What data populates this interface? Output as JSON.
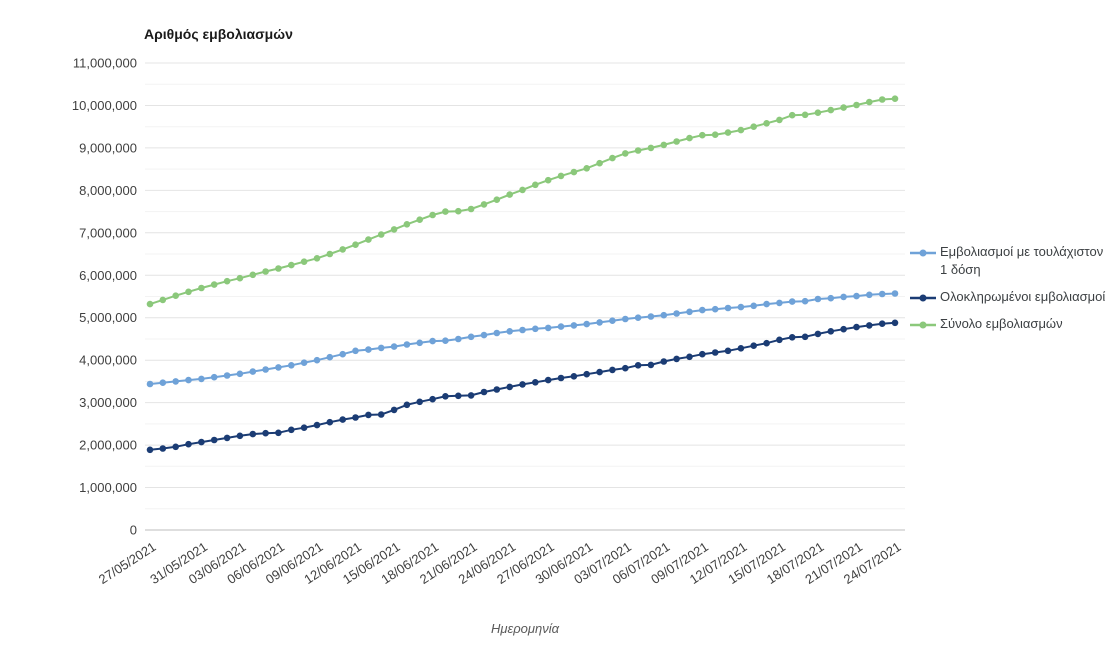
{
  "title": "Αριθμός εμβολιασμών",
  "x_axis": {
    "title": "Ημερομηνία",
    "tick_labels": [
      "27/05/2021",
      "31/05/2021",
      "03/06/2021",
      "06/06/2021",
      "09/06/2021",
      "12/06/2021",
      "15/06/2021",
      "18/06/2021",
      "21/06/2021",
      "24/06/2021",
      "27/06/2021",
      "30/06/2021",
      "03/07/2021",
      "06/07/2021",
      "09/07/2021",
      "12/07/2021",
      "15/07/2021",
      "18/07/2021",
      "21/07/2021",
      "24/07/2021"
    ]
  },
  "y_axis": {
    "tick_labels": [
      "0",
      "1,000,000",
      "2,000,000",
      "3,000,000",
      "4,000,000",
      "5,000,000",
      "6,000,000",
      "7,000,000",
      "8,000,000",
      "9,000,000",
      "10,000,000",
      "11,000,000"
    ]
  },
  "legend": {
    "items": [
      {
        "label": "Εμβολιασμοί με τουλάχιστον 1 δόση",
        "color": "#6fa2d8"
      },
      {
        "label": "Ολοκληρωμένοι εμβολιασμοί",
        "color": "#1b3c74"
      },
      {
        "label": "Σύνολο εμβολιασμών",
        "color": "#8bc87b"
      }
    ]
  },
  "colors": {
    "grid_major": "#e4e4e4",
    "grid_minor": "#f3f3f3",
    "axis_line": "#bdbdbd",
    "tick_text": "#3f3f3f"
  },
  "chart_data": {
    "type": "line",
    "title": "Αριθμός εμβολιασμών",
    "xlabel": "Ημερομηνία",
    "ylabel": "",
    "ylim": [
      0,
      11000000
    ],
    "y_max": 11000000,
    "grid": true,
    "legend_position": "right",
    "x": [
      "27/05/2021",
      "28/05/2021",
      "29/05/2021",
      "30/05/2021",
      "31/05/2021",
      "01/06/2021",
      "02/06/2021",
      "03/06/2021",
      "04/06/2021",
      "05/06/2021",
      "06/06/2021",
      "07/06/2021",
      "08/06/2021",
      "09/06/2021",
      "10/06/2021",
      "11/06/2021",
      "12/06/2021",
      "13/06/2021",
      "14/06/2021",
      "15/06/2021",
      "16/06/2021",
      "17/06/2021",
      "18/06/2021",
      "19/06/2021",
      "20/06/2021",
      "21/06/2021",
      "22/06/2021",
      "23/06/2021",
      "24/06/2021",
      "25/06/2021",
      "26/06/2021",
      "27/06/2021",
      "28/06/2021",
      "29/06/2021",
      "30/06/2021",
      "01/07/2021",
      "02/07/2021",
      "03/07/2021",
      "04/07/2021",
      "05/07/2021",
      "06/07/2021",
      "07/07/2021",
      "08/07/2021",
      "09/07/2021",
      "10/07/2021",
      "11/07/2021",
      "12/07/2021",
      "13/07/2021",
      "14/07/2021",
      "15/07/2021",
      "16/07/2021",
      "17/07/2021",
      "18/07/2021",
      "19/07/2021",
      "20/07/2021",
      "21/07/2021",
      "22/07/2021",
      "23/07/2021",
      "24/07/2021"
    ],
    "series": [
      {
        "name": "Εμβολιασμοί με τουλάχιστον 1 δόση",
        "color": "#6fa2d8",
        "values": [
          3440000,
          3470000,
          3500000,
          3530000,
          3560000,
          3600000,
          3640000,
          3680000,
          3730000,
          3780000,
          3830000,
          3880000,
          3940000,
          4000000,
          4070000,
          4140000,
          4220000,
          4250000,
          4290000,
          4320000,
          4370000,
          4410000,
          4450000,
          4460000,
          4500000,
          4550000,
          4590000,
          4640000,
          4680000,
          4710000,
          4740000,
          4760000,
          4790000,
          4820000,
          4850000,
          4890000,
          4930000,
          4970000,
          5000000,
          5030000,
          5060000,
          5100000,
          5140000,
          5180000,
          5200000,
          5230000,
          5250000,
          5280000,
          5320000,
          5350000,
          5380000,
          5390000,
          5440000,
          5460000,
          5490000,
          5510000,
          5540000,
          5560000,
          5570000
        ]
      },
      {
        "name": "Ολοκληρωμένοι εμβολιασμοί",
        "color": "#1b3c74",
        "values": [
          1890000,
          1920000,
          1960000,
          2020000,
          2070000,
          2120000,
          2170000,
          2220000,
          2260000,
          2280000,
          2290000,
          2360000,
          2410000,
          2470000,
          2540000,
          2600000,
          2650000,
          2710000,
          2720000,
          2830000,
          2950000,
          3020000,
          3080000,
          3150000,
          3160000,
          3170000,
          3250000,
          3310000,
          3370000,
          3430000,
          3480000,
          3530000,
          3580000,
          3620000,
          3670000,
          3720000,
          3770000,
          3810000,
          3880000,
          3890000,
          3970000,
          4030000,
          4080000,
          4140000,
          4180000,
          4220000,
          4280000,
          4340000,
          4400000,
          4480000,
          4540000,
          4550000,
          4620000,
          4680000,
          4730000,
          4780000,
          4820000,
          4860000,
          4880000
        ]
      },
      {
        "name": "Σύνολο εμβολιασμών",
        "color": "#8bc87b",
        "values": [
          5320000,
          5420000,
          5520000,
          5610000,
          5700000,
          5780000,
          5860000,
          5930000,
          6010000,
          6090000,
          6160000,
          6240000,
          6320000,
          6400000,
          6500000,
          6610000,
          6720000,
          6840000,
          6960000,
          7080000,
          7200000,
          7310000,
          7420000,
          7500000,
          7510000,
          7560000,
          7670000,
          7780000,
          7900000,
          8010000,
          8130000,
          8240000,
          8340000,
          8430000,
          8520000,
          8640000,
          8760000,
          8870000,
          8940000,
          9000000,
          9070000,
          9150000,
          9230000,
          9300000,
          9310000,
          9360000,
          9420000,
          9500000,
          9580000,
          9660000,
          9770000,
          9780000,
          9830000,
          9890000,
          9950000,
          10010000,
          10080000,
          10140000,
          10160000
        ]
      }
    ]
  }
}
